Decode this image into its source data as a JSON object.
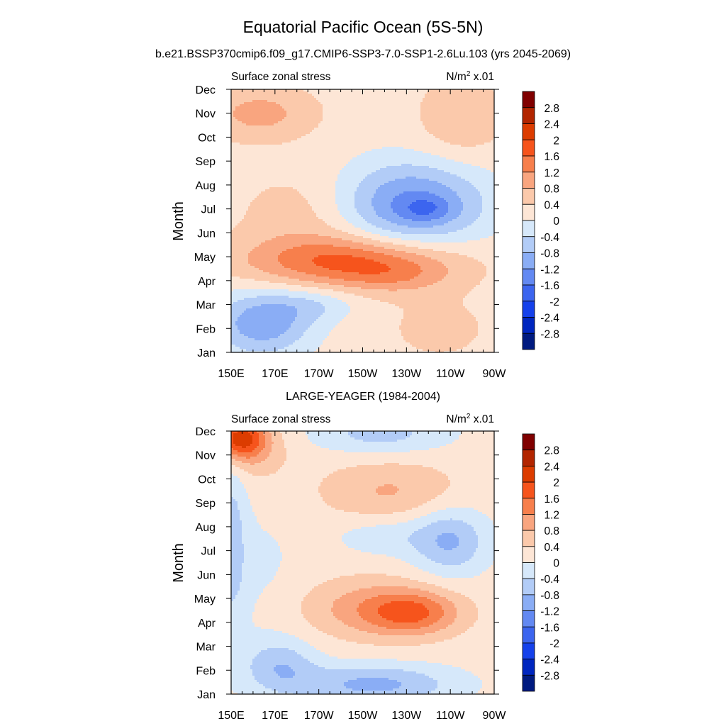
{
  "figure": {
    "title": "Equatorial Pacific Ocean (5S-5N)",
    "subtitle": "b.e21.BSSP370cmip6.f09_g17.CMIP6-SSP3-7.0-SSP1-2.6Lu.103 (yrs 2045-2069)"
  },
  "chart_data": [
    {
      "type": "heatmap",
      "panel_title": "",
      "left_label": "Surface zonal stress",
      "units_base": "N/m",
      "units_sup": "2",
      "units_tail": " x.01",
      "ylabel": "Month",
      "x_tick_labels": [
        "150E",
        "170E",
        "170W",
        "150W",
        "130W",
        "110W",
        "90W"
      ],
      "x_tick_lon": [
        150,
        170,
        190,
        210,
        230,
        250,
        270
      ],
      "xlim_lon": [
        150,
        270
      ],
      "y_tick_labels": [
        "Jan",
        "Feb",
        "Mar",
        "Apr",
        "May",
        "Jun",
        "Jul",
        "Aug",
        "Sep",
        "Oct",
        "Nov",
        "Dec"
      ],
      "ylim_month": [
        1,
        12
      ],
      "contour_levels": [
        -2.8,
        -2.4,
        -2,
        -1.6,
        -1.2,
        -0.8,
        -0.4,
        0,
        0.4,
        0.8,
        1.2,
        1.6,
        2,
        2.4,
        2.8
      ],
      "features": [
        {
          "lon": 208,
          "month": 7.6,
          "slon": 26,
          "smon": 0.45,
          "amp": 0.0
        },
        {
          "lon": 232,
          "month": 7.2,
          "slon": 24,
          "smon": 1.25,
          "amp": -1.55
        },
        {
          "lon": 239,
          "month": 7.0,
          "slon": 8,
          "smon": 0.35,
          "amp": -0.55
        },
        {
          "lon": 203,
          "month": 4.8,
          "slon": 33,
          "smon": 0.75,
          "amp": 1.45
        },
        {
          "lon": 226,
          "month": 4.2,
          "slon": 18,
          "smon": 0.55,
          "amp": 0.45
        },
        {
          "lon": 164,
          "month": 2.2,
          "slon": 16,
          "smon": 0.95,
          "amp": -1.3
        },
        {
          "lon": 188,
          "month": 3.0,
          "slon": 14,
          "smon": 0.5,
          "amp": -0.5
        },
        {
          "lon": 163,
          "month": 11.0,
          "slon": 18,
          "smon": 0.8,
          "amp": 0.75
        },
        {
          "lon": 255,
          "month": 10.8,
          "slon": 14,
          "smon": 1.2,
          "amp": 0.55
        },
        {
          "lon": 185,
          "month": 6.8,
          "slon": 22,
          "smon": 1.3,
          "amp": 0.45
        },
        {
          "lon": 245,
          "month": 2.0,
          "slon": 20,
          "smon": 1.1,
          "amp": 0.3
        }
      ],
      "background": 0.2
    },
    {
      "type": "heatmap",
      "panel_title": "LARGE-YEAGER (1984-2004)",
      "left_label": "Surface zonal stress",
      "units_base": "N/m",
      "units_sup": "2",
      "units_tail": " x.01",
      "ylabel": "Month",
      "x_tick_labels": [
        "150E",
        "170E",
        "170W",
        "150W",
        "130W",
        "110W",
        "90W"
      ],
      "x_tick_lon": [
        150,
        170,
        190,
        210,
        230,
        250,
        270
      ],
      "xlim_lon": [
        150,
        270
      ],
      "y_tick_labels": [
        "Jan",
        "Feb",
        "Mar",
        "Apr",
        "May",
        "Jun",
        "Jul",
        "Aug",
        "Sep",
        "Oct",
        "Nov",
        "Dec"
      ],
      "ylim_month": [
        1,
        12
      ],
      "contour_levels": [
        -2.8,
        -2.4,
        -2,
        -1.6,
        -1.2,
        -0.8,
        -0.4,
        0,
        0.4,
        0.8,
        1.2,
        1.6,
        2,
        2.4,
        2.8
      ],
      "features": [
        {
          "lon": 154,
          "month": 11.7,
          "slon": 8,
          "smon": 0.6,
          "amp": 1.9
        },
        {
          "lon": 160,
          "month": 11.2,
          "slon": 12,
          "smon": 0.9,
          "amp": 0.5
        },
        {
          "lon": 233,
          "month": 4.4,
          "slon": 15,
          "smon": 0.65,
          "amp": 1.25
        },
        {
          "lon": 212,
          "month": 4.6,
          "slon": 22,
          "smon": 0.9,
          "amp": 0.75
        },
        {
          "lon": 222,
          "month": 9.5,
          "slon": 22,
          "smon": 0.9,
          "amp": 0.65
        },
        {
          "lon": 215,
          "month": 1.4,
          "slon": 26,
          "smon": 0.6,
          "amp": -1.1
        },
        {
          "lon": 172,
          "month": 2.2,
          "slon": 12,
          "smon": 0.8,
          "amp": -0.85
        },
        {
          "lon": 150,
          "month": 7.5,
          "slon": 5,
          "smon": 2.8,
          "amp": -0.7
        },
        {
          "lon": 250,
          "month": 7.4,
          "slon": 12,
          "smon": 1.0,
          "amp": -1.0
        },
        {
          "lon": 220,
          "month": 7.6,
          "slon": 16,
          "smon": 0.6,
          "amp": -0.45
        },
        {
          "lon": 218,
          "month": 11.9,
          "slon": 22,
          "smon": 0.6,
          "amp": -0.75
        },
        {
          "lon": 163,
          "month": 6.2,
          "slon": 14,
          "smon": 2.0,
          "amp": -0.25
        }
      ],
      "background": 0.18
    }
  ],
  "colorbar": {
    "labels": [
      "2.8",
      "2.4",
      "2",
      "1.6",
      "1.2",
      "0.8",
      "0.4",
      "0",
      "-0.4",
      "-0.8",
      "-1.2",
      "-1.6",
      "-2",
      "-2.4",
      "-2.8"
    ],
    "colors": [
      "#800000",
      "#b22500",
      "#dc3c00",
      "#f6541c",
      "#f77f4c",
      "#f9a57f",
      "#fbc9ab",
      "#fde6d6",
      "#d6e8fa",
      "#b2ccf7",
      "#8aadf5",
      "#6389f2",
      "#3c65ef",
      "#1541eb",
      "#0026bf",
      "#001a80"
    ]
  }
}
